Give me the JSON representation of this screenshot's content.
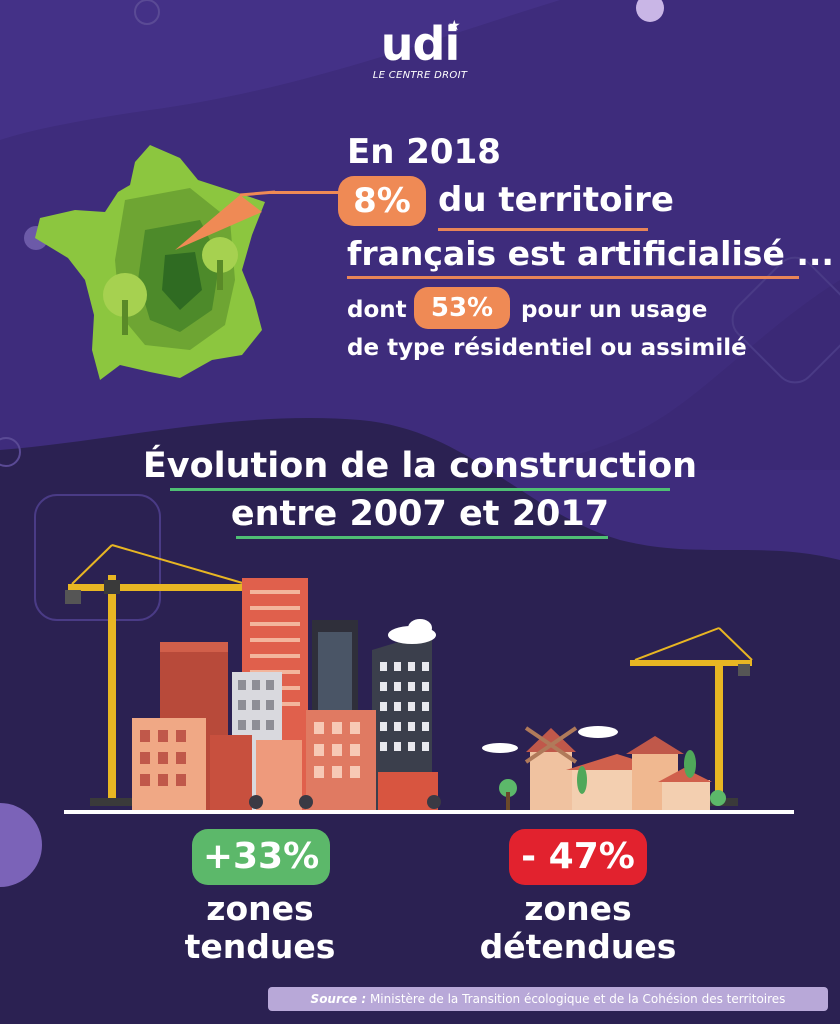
{
  "logo": {
    "word": "udi",
    "tagline": "LE CENTRE DROIT"
  },
  "headline": {
    "line1": "En 2018",
    "pill1": "8%",
    "line2_rest": "du territoire",
    "line3": "français est artificialisé ...",
    "sub_pre": "dont",
    "pill2": "53%",
    "sub_rest": "pour un usage",
    "sub_line2": "de type résidentiel ou assimilé"
  },
  "evolution": {
    "line1": "Évolution de la construction",
    "line2": "entre 2007 et 2017"
  },
  "stats": [
    {
      "value": "+33%",
      "label_line1": "zones",
      "label_line2": "tendues",
      "color": "#5cb86a"
    },
    {
      "value": "- 47%",
      "label_line1": "zones",
      "label_line2": "détendues",
      "color": "#e2222e"
    }
  ],
  "source": {
    "label": "Source :",
    "text": "Ministère de la Transition écologique et de la Cohésion des territoires"
  },
  "colors": {
    "background": "#2b2152",
    "wave": "#3c2a78",
    "accent_orange": "#ef8a55",
    "accent_green": "#4fbf74"
  }
}
